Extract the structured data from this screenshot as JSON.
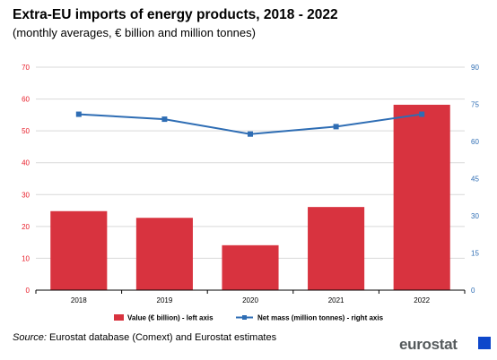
{
  "header": {
    "title": "Extra-EU imports of energy products, 2018 - 2022",
    "subtitle": "(monthly averages, € billion and million tonnes)"
  },
  "footer": {
    "source_label": "Source:",
    "source_text": "Eurostat database (Comext) and Eurostat estimates",
    "logo_text": "eurostat"
  },
  "colors": {
    "bar": "#d8333f",
    "line": "#2e6db4",
    "left_axis_text": "#e8202c",
    "right_axis_text": "#2e6db4",
    "grid": "#d9d9d9"
  },
  "chart_data": {
    "type": "bar",
    "categories": [
      "2018",
      "2019",
      "2020",
      "2021",
      "2022"
    ],
    "series": [
      {
        "name": "Value (€ billion) - left axis",
        "type": "bar",
        "axis": "left",
        "values": [
          24.8,
          22.7,
          14.1,
          26.1,
          58.2
        ]
      },
      {
        "name": "Net mass (million tonnes) - right axis",
        "type": "line",
        "axis": "right",
        "values": [
          71,
          69,
          63,
          66,
          71
        ]
      }
    ],
    "left_axis": {
      "ylim": [
        0,
        70
      ],
      "ticks": [
        "0",
        "10",
        "20",
        "30",
        "40",
        "50",
        "60",
        "70"
      ]
    },
    "right_axis": {
      "ylim": [
        0,
        90
      ],
      "ticks": [
        "0",
        "15",
        "30",
        "45",
        "60",
        "75",
        "90"
      ]
    },
    "grid": true,
    "legend_position": "bottom"
  }
}
